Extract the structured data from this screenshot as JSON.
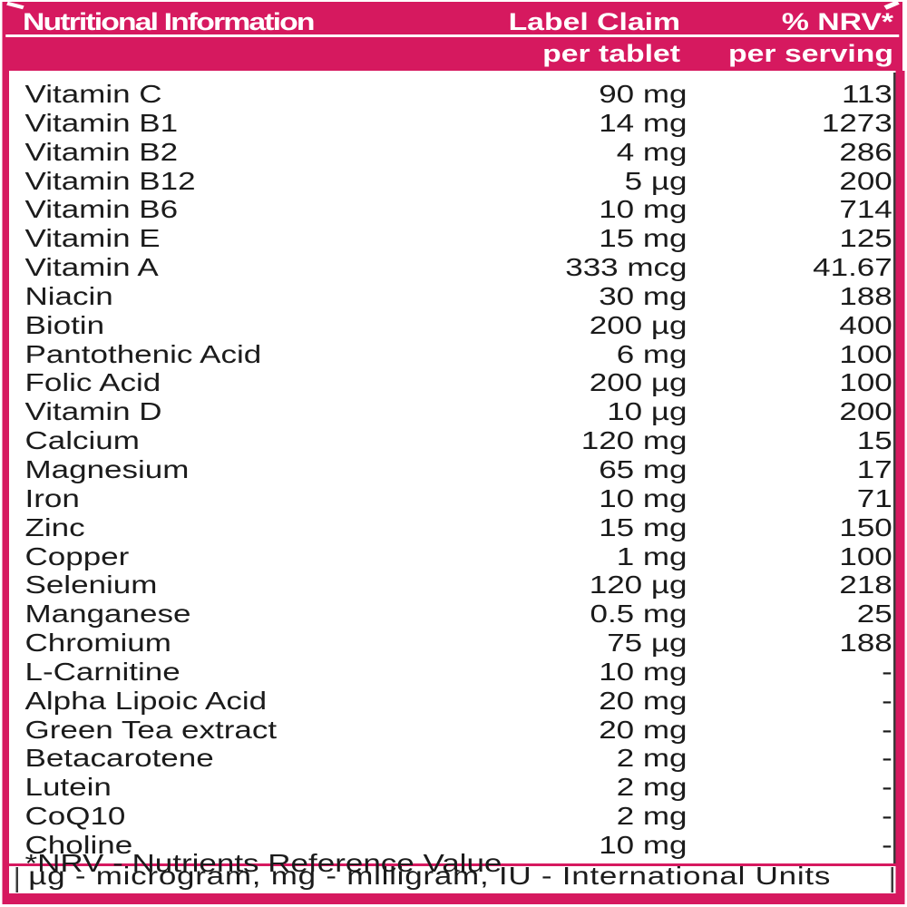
{
  "colors": {
    "pink": "#d6195f",
    "text": "#1b1b1b",
    "header_text": "#ffffff"
  },
  "table": {
    "header": {
      "title": "Nutritional Information",
      "col2_line1": "Label Claim",
      "col2_line2": "per tablet",
      "col3_line1": "% NRV*",
      "col3_line2": "per serving"
    },
    "rows": [
      {
        "name": "Vitamin C",
        "amount": "90 mg",
        "nrv": "113"
      },
      {
        "name": "Vitamin B1",
        "amount": "14 mg",
        "nrv": "1273"
      },
      {
        "name": "Vitamin B2",
        "amount": "4 mg",
        "nrv": "286"
      },
      {
        "name": "Vitamin B12",
        "amount": "5 µg",
        "nrv": "200"
      },
      {
        "name": "Vitamin B6",
        "amount": "10 mg",
        "nrv": "714"
      },
      {
        "name": "Vitamin E",
        "amount": "15 mg",
        "nrv": "125"
      },
      {
        "name": "Vitamin A",
        "amount": "333 mcg",
        "nrv": "41.67"
      },
      {
        "name": "Niacin",
        "amount": "30 mg",
        "nrv": "188"
      },
      {
        "name": "Biotin",
        "amount": "200 µg",
        "nrv": "400"
      },
      {
        "name": "Pantothenic Acid",
        "amount": "6 mg",
        "nrv": "100"
      },
      {
        "name": "Folic Acid",
        "amount": "200 µg",
        "nrv": "100"
      },
      {
        "name": "Vitamin D",
        "amount": "10 µg",
        "nrv": "200"
      },
      {
        "name": "Calcium",
        "amount": "120 mg",
        "nrv": "15"
      },
      {
        "name": "Magnesium",
        "amount": "65 mg",
        "nrv": "17"
      },
      {
        "name": "Iron",
        "amount": "10 mg",
        "nrv": "71"
      },
      {
        "name": "Zinc",
        "amount": "15 mg",
        "nrv": "150"
      },
      {
        "name": "Copper",
        "amount": "1 mg",
        "nrv": "100"
      },
      {
        "name": "Selenium",
        "amount": "120 µg",
        "nrv": "218"
      },
      {
        "name": "Manganese",
        "amount": "0.5 mg",
        "nrv": "25"
      },
      {
        "name": "Chromium",
        "amount": "75 µg",
        "nrv": "188"
      },
      {
        "name": "L-Carnitine",
        "amount": "10 mg",
        "nrv": "-"
      },
      {
        "name": "Alpha Lipoic Acid",
        "amount": "20 mg",
        "nrv": "-"
      },
      {
        "name": "Green Tea extract",
        "amount": "20 mg",
        "nrv": "-"
      },
      {
        "name": "Betacarotene",
        "amount": "2 mg",
        "nrv": "-"
      },
      {
        "name": "Lutein",
        "amount": "2 mg",
        "nrv": "-"
      },
      {
        "name": "CoQ10",
        "amount": "2 mg",
        "nrv": "-"
      },
      {
        "name": "Choline",
        "amount": "10 mg",
        "nrv": "-"
      }
    ],
    "footnotes": {
      "nrv_note": "*NRV - Nutrients Reference Value",
      "units_note": "µg - microgram, mg - milligram, IU - International Units"
    }
  }
}
